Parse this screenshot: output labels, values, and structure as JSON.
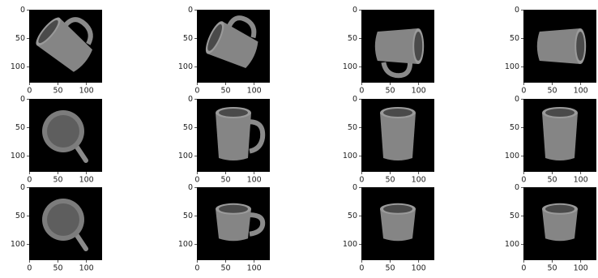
{
  "chart_data": [
    {
      "type": "image",
      "xlim": [
        -0.5,
        127.5
      ],
      "ylim": [
        127.5,
        -0.5
      ],
      "xticks": [
        0,
        50,
        100
      ],
      "yticks": [
        0,
        50,
        100
      ]
    },
    {
      "type": "image",
      "xlim": [
        -0.5,
        127.5
      ],
      "ylim": [
        127.5,
        -0.5
      ],
      "xticks": [
        0,
        50,
        100
      ],
      "yticks": [
        0,
        50,
        100
      ]
    },
    {
      "type": "image",
      "xlim": [
        -0.5,
        127.5
      ],
      "ylim": [
        127.5,
        -0.5
      ],
      "xticks": [
        0,
        50,
        100
      ],
      "yticks": [
        0,
        50,
        100
      ]
    },
    {
      "type": "image",
      "xlim": [
        -0.5,
        127.5
      ],
      "ylim": [
        127.5,
        -0.5
      ],
      "xticks": [
        0,
        50,
        100
      ],
      "yticks": [
        0,
        50,
        100
      ]
    },
    {
      "type": "image",
      "xlim": [
        -0.5,
        127.5
      ],
      "ylim": [
        127.5,
        -0.5
      ],
      "xticks": [
        0,
        50,
        100
      ],
      "yticks": [
        0,
        50,
        100
      ]
    },
    {
      "type": "image",
      "xlim": [
        -0.5,
        127.5
      ],
      "ylim": [
        127.5,
        -0.5
      ],
      "xticks": [
        0,
        50,
        100
      ],
      "yticks": [
        0,
        50,
        100
      ]
    },
    {
      "type": "image",
      "xlim": [
        -0.5,
        127.5
      ],
      "ylim": [
        127.5,
        -0.5
      ],
      "xticks": [
        0,
        50,
        100
      ],
      "yticks": [
        0,
        50,
        100
      ]
    },
    {
      "type": "image",
      "xlim": [
        -0.5,
        127.5
      ],
      "ylim": [
        127.5,
        -0.5
      ],
      "xticks": [
        0,
        50,
        100
      ],
      "yticks": [
        0,
        50,
        100
      ]
    },
    {
      "type": "image",
      "xlim": [
        -0.5,
        127.5
      ],
      "ylim": [
        127.5,
        -0.5
      ],
      "xticks": [
        0,
        50,
        100
      ],
      "yticks": [
        0,
        50,
        100
      ]
    },
    {
      "type": "image",
      "xlim": [
        -0.5,
        127.5
      ],
      "ylim": [
        127.5,
        -0.5
      ],
      "xticks": [
        0,
        50,
        100
      ],
      "yticks": [
        0,
        50,
        100
      ]
    },
    {
      "type": "image",
      "xlim": [
        -0.5,
        127.5
      ],
      "ylim": [
        127.5,
        -0.5
      ],
      "xticks": [
        0,
        50,
        100
      ],
      "yticks": [
        0,
        50,
        100
      ]
    },
    {
      "type": "image",
      "xlim": [
        -0.5,
        127.5
      ],
      "ylim": [
        127.5,
        -0.5
      ],
      "xticks": [
        0,
        50,
        100
      ],
      "yticks": [
        0,
        50,
        100
      ]
    }
  ]
}
